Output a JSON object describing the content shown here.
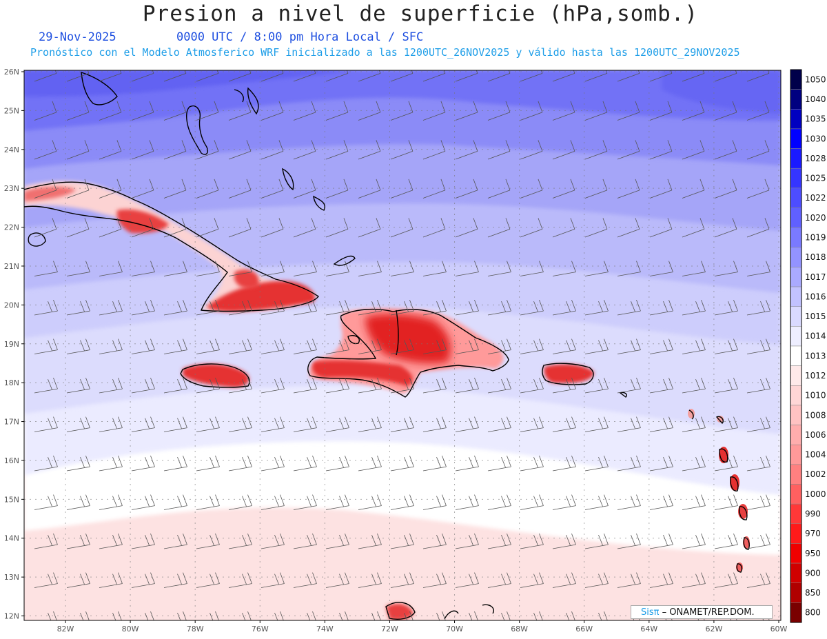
{
  "header": {
    "title": "Presion a nivel de superficie (hPa,somb.)",
    "date": "29-Nov-2025",
    "time_info": "0000 UTC / 8:00 pm Hora Local / SFC",
    "subtitle": "Pronóstico con el Modelo Atmosferico WRF inicializado a las 1200UTC_26NOV2025 y válido hasta las  1200UTC_29NOV2025"
  },
  "axes": {
    "lat_labels": [
      "26N",
      "25N",
      "24N",
      "23N",
      "22N",
      "21N",
      "20N",
      "19N",
      "18N",
      "17N",
      "16N",
      "15N",
      "14N",
      "13N",
      "12N"
    ],
    "lon_labels": [
      "82W",
      "80W",
      "78W",
      "76W",
      "74W",
      "72W",
      "70W",
      "68W",
      "66W",
      "64W",
      "62W",
      "60W"
    ]
  },
  "colorbar": {
    "levels": [
      "1050",
      "1040",
      "1035",
      "1030",
      "1028",
      "1025",
      "1022",
      "1020",
      "1019",
      "1018",
      "1017",
      "1016",
      "1015",
      "1014",
      "1013",
      "1012",
      "1010",
      "1008",
      "1006",
      "1004",
      "1002",
      "1000",
      "990",
      "970",
      "950",
      "900",
      "850",
      "800"
    ],
    "colors": [
      "#00004a",
      "#000080",
      "#0000c0",
      "#0000ff",
      "#1a1aff",
      "#3535ff",
      "#4d4dff",
      "#6060ff",
      "#7a7aff",
      "#9393ff",
      "#aaaaff",
      "#c2c2ff",
      "#dadaff",
      "#eeeeff",
      "#ffffff",
      "#ffeaea",
      "#ffd6d6",
      "#ffc2c2",
      "#ffadad",
      "#ff9999",
      "#ff8080",
      "#ff6060",
      "#ff3838",
      "#ff1a1a",
      "#f00000",
      "#d00000",
      "#b00000",
      "#7a0000"
    ]
  },
  "credit": {
    "brand": "Sisπ",
    "org": " – ONAMET/REP.DOM."
  }
}
